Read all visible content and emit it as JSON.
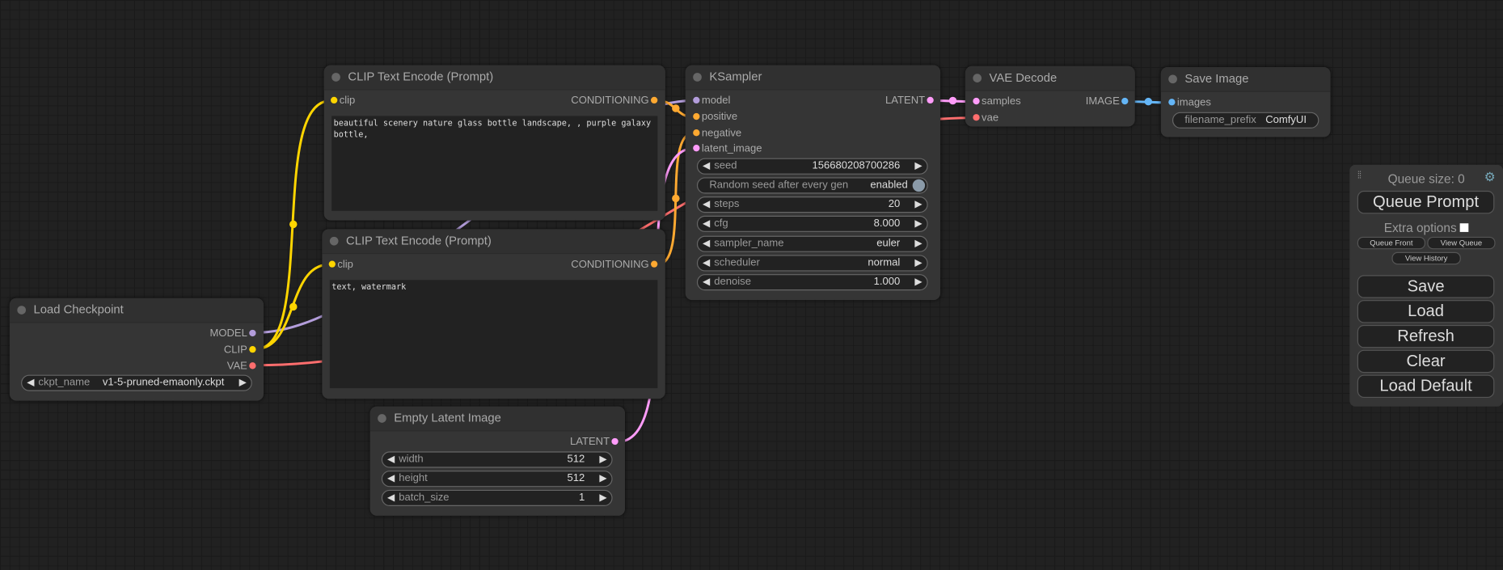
{
  "colors": {
    "model": "#b39ddb",
    "clip": "#ffd500",
    "vae": "#ff6e6e",
    "conditioning": "#ffa931",
    "latent": "#ff9cf9",
    "image": "#64b5f6"
  },
  "nodes": {
    "load_checkpoint": {
      "title": "Load Checkpoint",
      "outputs": [
        "MODEL",
        "CLIP",
        "VAE"
      ],
      "ckpt_name": {
        "label": "ckpt_name",
        "value": "v1-5-pruned-emaonly.ckpt"
      }
    },
    "clip_pos": {
      "title": "CLIP Text Encode (Prompt)",
      "input": "clip",
      "output": "CONDITIONING",
      "text": "beautiful scenery nature glass bottle landscape, , purple galaxy bottle,"
    },
    "clip_neg": {
      "title": "CLIP Text Encode (Prompt)",
      "input": "clip",
      "output": "CONDITIONING",
      "text": "text, watermark"
    },
    "ksampler": {
      "title": "KSampler",
      "inputs": [
        "model",
        "positive",
        "negative",
        "latent_image"
      ],
      "output": "LATENT",
      "widgets": [
        {
          "label": "seed",
          "value": "156680208700286"
        },
        {
          "label": "Random seed after every gen",
          "value": "enabled"
        },
        {
          "label": "steps",
          "value": "20"
        },
        {
          "label": "cfg",
          "value": "8.000"
        },
        {
          "label": "sampler_name",
          "value": "euler"
        },
        {
          "label": "scheduler",
          "value": "normal"
        },
        {
          "label": "denoise",
          "value": "1.000"
        }
      ]
    },
    "vae_decode": {
      "title": "VAE Decode",
      "inputs": [
        "samples",
        "vae"
      ],
      "output": "IMAGE"
    },
    "save_image": {
      "title": "Save Image",
      "input": "images",
      "filename_prefix": {
        "label": "filename_prefix",
        "value": "ComfyUI"
      }
    },
    "empty_latent": {
      "title": "Empty Latent Image",
      "output": "LATENT",
      "widgets": [
        {
          "label": "width",
          "value": "512"
        },
        {
          "label": "height",
          "value": "512"
        },
        {
          "label": "batch_size",
          "value": "1"
        }
      ]
    }
  },
  "panel": {
    "queue_size": "Queue size: 0",
    "queue_prompt": "Queue Prompt",
    "extra_options": "Extra options",
    "queue_front": "Queue Front",
    "view_queue": "View Queue",
    "view_history": "View History",
    "save": "Save",
    "load": "Load",
    "refresh": "Refresh",
    "clear": "Clear",
    "load_default": "Load Default"
  }
}
